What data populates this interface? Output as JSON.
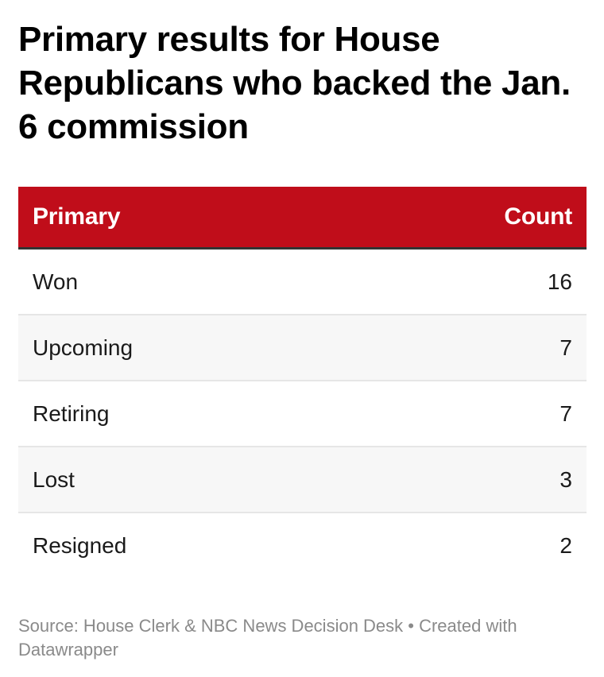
{
  "chart_data": {
    "type": "table",
    "title": "Primary results for House Republicans who backed the Jan. 6 commission",
    "columns": [
      "Primary",
      "Count"
    ],
    "rows": [
      {
        "label": "Won",
        "value": 16
      },
      {
        "label": "Upcoming",
        "value": 7
      },
      {
        "label": "Retiring",
        "value": 7
      },
      {
        "label": "Lost",
        "value": 3
      },
      {
        "label": "Resigned",
        "value": 2
      }
    ],
    "colors": {
      "header_background": "#c00d1a",
      "header_text": "#ffffff",
      "header_rule": "#333333",
      "zebra_row": "#f7f7f7"
    }
  },
  "footer": {
    "source": "Source: House Clerk & NBC News Decision Desk • Created with Datawrapper"
  }
}
